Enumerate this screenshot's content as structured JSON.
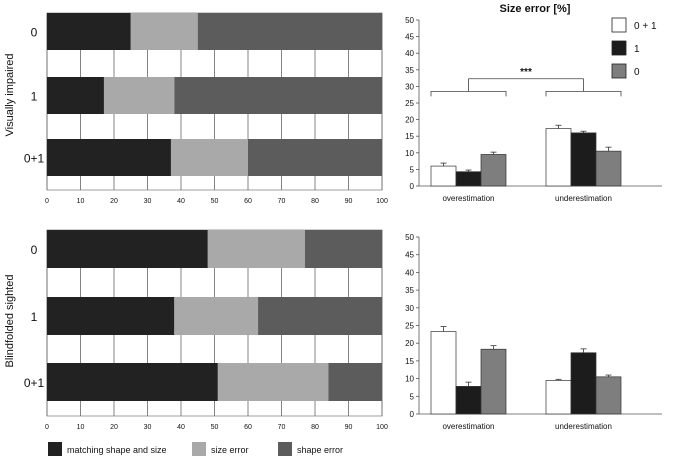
{
  "figure_title": "Size error [%]",
  "group_labels": [
    "Visually impaired",
    "Blindfolded sighted"
  ],
  "colors": {
    "matching": "#222222",
    "size_error": "#a9a9a9",
    "shape_error": "#5c5c5c",
    "legend_0plus1": "#ffffff",
    "legend_1": "#1c1c1c",
    "legend_0": "#7e7e7e",
    "axis": "#555555",
    "text": "#111111"
  },
  "bottom_legend": [
    {
      "key": "matching",
      "label": "matching shape and size"
    },
    {
      "key": "size_error",
      "label": "size error"
    },
    {
      "key": "shape_error",
      "label": "shape error"
    }
  ],
  "right_legend": [
    {
      "key": "legend_0plus1",
      "label": "0 + 1"
    },
    {
      "key": "legend_1",
      "label": "1"
    },
    {
      "key": "legend_0",
      "label": "0"
    }
  ],
  "chart_data": [
    {
      "id": "vi-stacked",
      "type": "bar",
      "orientation": "horizontal-stacked",
      "group": "Visually impaired",
      "categories": [
        "0",
        "1",
        "0+1"
      ],
      "series": [
        {
          "name": "matching shape and size",
          "values": [
            25,
            17,
            37
          ]
        },
        {
          "name": "size error",
          "values": [
            20,
            21,
            23
          ]
        },
        {
          "name": "shape error",
          "values": [
            55,
            62,
            40
          ]
        }
      ],
      "xlim": [
        0,
        100
      ],
      "xticks": [
        0,
        10,
        20,
        30,
        40,
        50,
        60,
        70,
        80,
        90,
        100
      ]
    },
    {
      "id": "bs-stacked",
      "type": "bar",
      "orientation": "horizontal-stacked",
      "group": "Blindfolded sighted",
      "categories": [
        "0",
        "1",
        "0+1"
      ],
      "series": [
        {
          "name": "matching shape and size",
          "values": [
            48,
            38,
            51
          ]
        },
        {
          "name": "size error",
          "values": [
            29,
            25,
            33
          ]
        },
        {
          "name": "shape error",
          "values": [
            23,
            37,
            16
          ]
        }
      ],
      "xlim": [
        0,
        100
      ],
      "xticks": [
        0,
        10,
        20,
        30,
        40,
        50,
        60,
        70,
        80,
        90,
        100
      ]
    },
    {
      "id": "vi-size-error",
      "type": "bar",
      "group": "Visually impaired",
      "title": "Size error [%]",
      "categories": [
        "overestimation",
        "underestimation"
      ],
      "series": [
        {
          "name": "0 + 1",
          "values": [
            6.0,
            17.3
          ],
          "errors": [
            0.9,
            1.0
          ]
        },
        {
          "name": "1",
          "values": [
            4.3,
            16.0
          ],
          "errors": [
            0.5,
            0.5
          ]
        },
        {
          "name": "0",
          "values": [
            9.5,
            10.5
          ],
          "errors": [
            0.7,
            1.2
          ]
        }
      ],
      "ylim": [
        0,
        50
      ],
      "yticks": [
        0,
        5,
        10,
        15,
        20,
        25,
        30,
        35,
        40,
        45,
        50
      ],
      "annotation": "***"
    },
    {
      "id": "bs-size-error",
      "type": "bar",
      "group": "Blindfolded sighted",
      "categories": [
        "overestimation",
        "underestimation"
      ],
      "series": [
        {
          "name": "0 + 1",
          "values": [
            23.3,
            9.5
          ],
          "errors": [
            1.4,
            0.3
          ]
        },
        {
          "name": "1",
          "values": [
            7.8,
            17.3
          ],
          "errors": [
            1.2,
            1.1
          ]
        },
        {
          "name": "0",
          "values": [
            18.3,
            10.5
          ],
          "errors": [
            1.0,
            0.5
          ]
        }
      ],
      "ylim": [
        0,
        50
      ],
      "yticks": [
        0,
        5,
        10,
        15,
        20,
        25,
        30,
        35,
        40,
        45,
        50
      ]
    }
  ]
}
